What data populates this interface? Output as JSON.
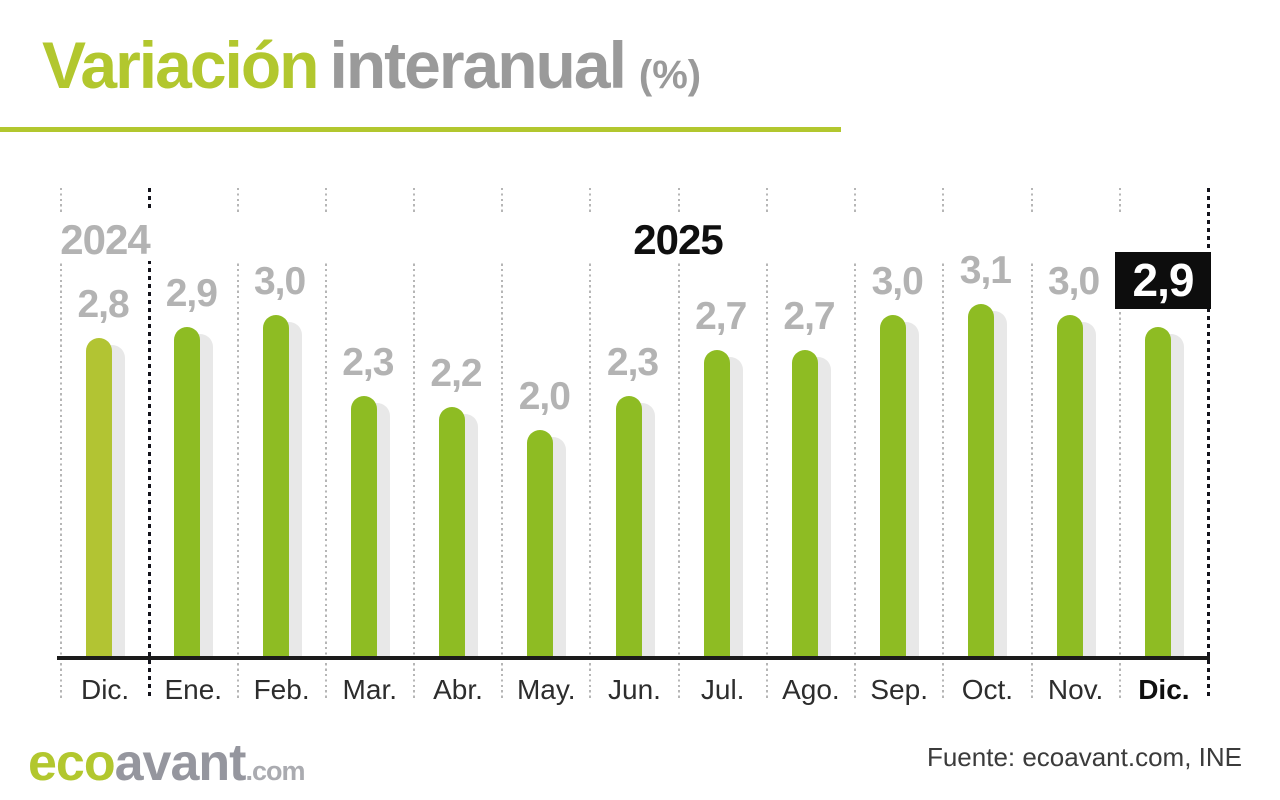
{
  "title": {
    "highlight": "Variación",
    "rest": "interanual",
    "suffix": "(%)"
  },
  "chart_data": {
    "type": "bar",
    "title": "Variación interanual (%)",
    "categories": [
      "Dic.",
      "Ene.",
      "Feb.",
      "Mar.",
      "Abr.",
      "May.",
      "Jun.",
      "Jul.",
      "Ago.",
      "Sep.",
      "Oct.",
      "Nov.",
      "Dic."
    ],
    "values": [
      2.8,
      2.9,
      3.0,
      2.3,
      2.2,
      2.0,
      2.3,
      2.7,
      2.7,
      3.0,
      3.1,
      3.0,
      2.9
    ],
    "value_labels": [
      "2,8",
      "2,9",
      "3,0",
      "2,3",
      "2,2",
      "2,0",
      "2,3",
      "2,7",
      "2,7",
      "3,0",
      "3,1",
      "3,0",
      "2,9"
    ],
    "year_left": "2024",
    "year_right": "2025",
    "ylim": [
      0,
      4.1
    ],
    "xlabel": "",
    "ylabel": "",
    "grid": "vertical dotted separators between months; heavy dotted line after Dic. 2024 and at right edge",
    "legend": "none",
    "notes": "first bar (Dic. 2024) lighter green; last value (Dic. 2025) shown as white text in black box; last month label bold"
  },
  "colors": {
    "accent_light": "#b2c72e",
    "accent": "#8ebc23",
    "bar_shadow": "#e8e8e8",
    "value_label_gray": "#b3b3b3",
    "highlight_box_bg": "#0d0d0d",
    "highlight_box_text": "#ffffff"
  },
  "footer": {
    "logo_green": "eco",
    "logo_gray": "avant",
    "logo_tld": ".com",
    "source": "Fuente: ecoavant.com, INE"
  }
}
